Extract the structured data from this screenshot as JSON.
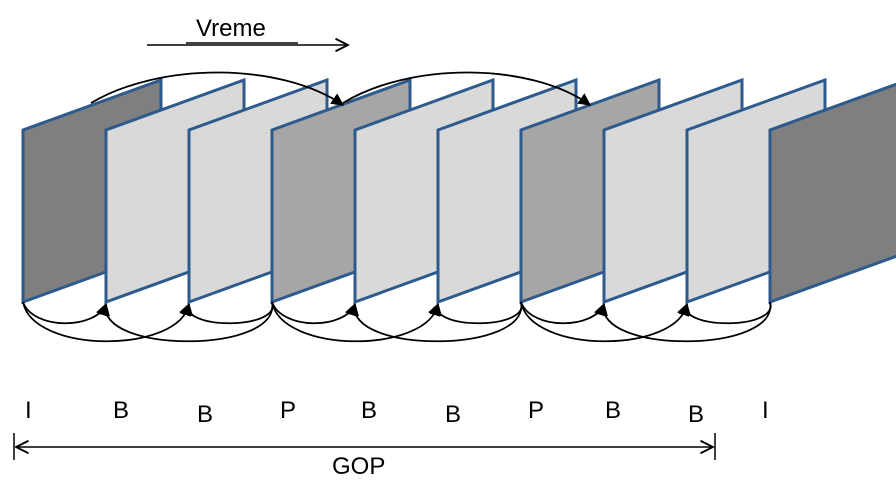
{
  "time_label": "Vreme",
  "gop_label": "GOP",
  "frame_types": [
    "I",
    "B",
    "B",
    "P",
    "B",
    "B",
    "P",
    "B",
    "B",
    "I"
  ],
  "colors": {
    "frame_border": "#2e5a8c",
    "reference_frame_fill": "#7f7f7f",
    "p_frame_fill": "#a6a6a6",
    "b_frame_fill": "#d9d9d9",
    "line": "#000000"
  }
}
